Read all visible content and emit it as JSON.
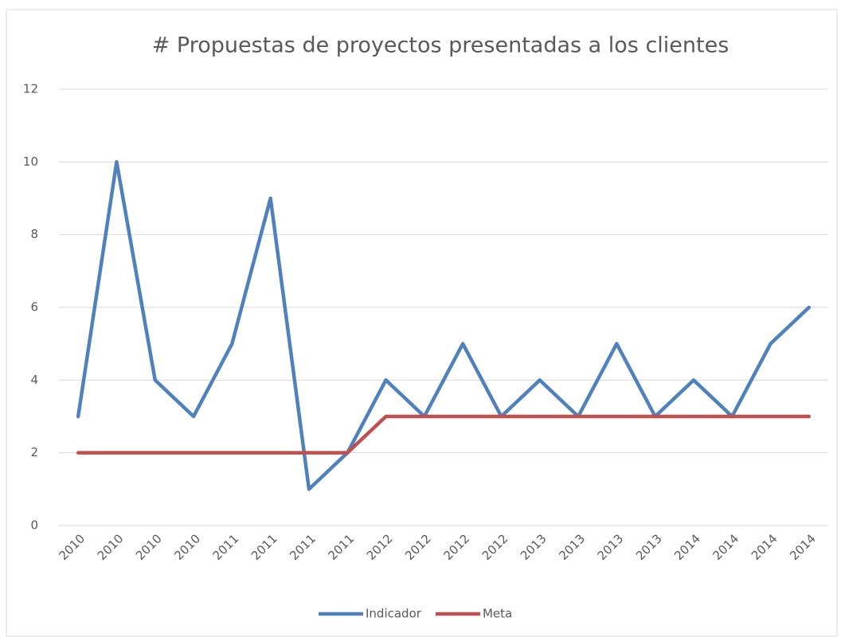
{
  "chart_data": {
    "type": "line",
    "title": "# Propuestas de proyectos presentadas a los clientes",
    "categories": [
      "2010",
      "2010",
      "2010",
      "2010",
      "2011",
      "2011",
      "2011",
      "2011",
      "2012",
      "2012",
      "2012",
      "2012",
      "2013",
      "2013",
      "2013",
      "2013",
      "2014",
      "2014",
      "2014",
      "2014"
    ],
    "series": [
      {
        "name": "Indicador",
        "color": "#4f81bd",
        "values": [
          3,
          10,
          4,
          3,
          5,
          9,
          1,
          2,
          4,
          3,
          5,
          3,
          4,
          3,
          5,
          3,
          4,
          3,
          5,
          6
        ]
      },
      {
        "name": "Meta",
        "color": "#c0504d",
        "values": [
          2,
          2,
          2,
          2,
          2,
          2,
          2,
          2,
          3,
          3,
          3,
          3,
          3,
          3,
          3,
          3,
          3,
          3,
          3,
          3
        ]
      }
    ],
    "ylim": [
      0,
      12
    ],
    "yticks": [
      0,
      2,
      4,
      6,
      8,
      10,
      12
    ],
    "grid": true,
    "legend": "bottom"
  }
}
